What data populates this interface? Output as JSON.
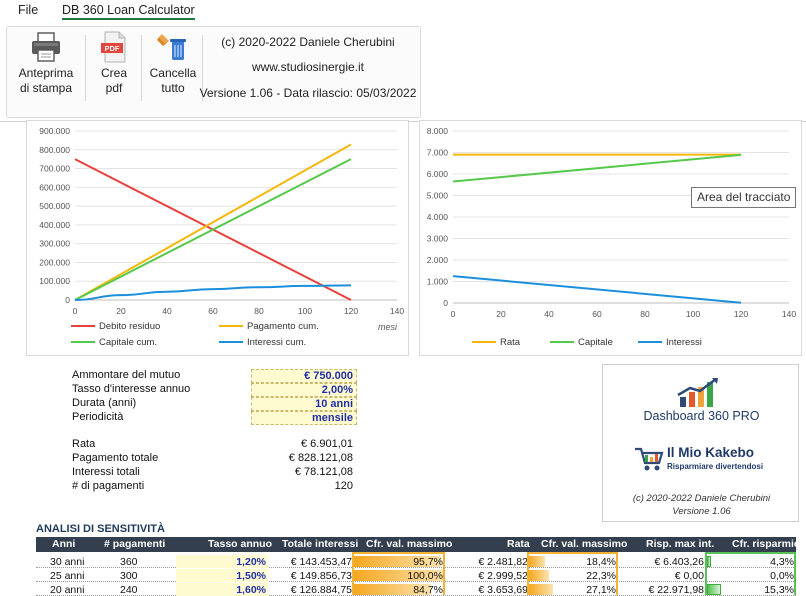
{
  "menu": {
    "file": "File",
    "app_tab": "DB 360 Loan Calculator"
  },
  "ribbon": {
    "print_label_1": "Anteprima",
    "print_label_2": "di stampa",
    "pdf_label_1": "Crea",
    "pdf_label_2": "pdf",
    "pdf_badge": "PDF",
    "clear_label_1": "Cancella",
    "clear_label_2": "tutto",
    "copyright": "(c) 2020-2022 Daniele Cherubini",
    "website": "www.studiosinergie.it",
    "version": "Versione 1.06 - Data rilascio: 05/03/2022"
  },
  "tooltip": "Area del tracciato",
  "colors": {
    "red": "#e8413c",
    "orange": "#f5b70c",
    "green": "#55c94b",
    "blue": "#1b8fdc",
    "header": "#333f4f"
  },
  "chart_data": [
    {
      "type": "line",
      "xlabel": "mesi",
      "x_ticks": [
        0,
        20,
        40,
        60,
        80,
        100,
        120,
        140
      ],
      "y_ticks": [
        "0",
        "100.000",
        "200.000",
        "300.000",
        "400.000",
        "500.000",
        "600.000",
        "700.000",
        "800.000",
        "900.000"
      ],
      "ylim": [
        0,
        900000
      ],
      "xlim": [
        0,
        140
      ],
      "series": [
        {
          "name": "Debito residuo",
          "color": "#e8413c",
          "x": [
            0,
            120
          ],
          "y": [
            750000,
            0
          ]
        },
        {
          "name": "Pagamento cum.",
          "color": "#f5b70c",
          "x": [
            0,
            120
          ],
          "y": [
            0,
            828121
          ]
        },
        {
          "name": "Capitale cum.",
          "color": "#55c94b",
          "x": [
            0,
            120
          ],
          "y": [
            0,
            750000
          ]
        },
        {
          "name": "Interessi cum.",
          "color": "#1b8fdc",
          "x": [
            0,
            20,
            40,
            60,
            80,
            100,
            120
          ],
          "y": [
            0,
            26000,
            44000,
            58000,
            68000,
            75000,
            78121
          ]
        }
      ]
    },
    {
      "type": "line",
      "x_ticks": [
        0,
        20,
        40,
        60,
        80,
        100,
        120,
        140
      ],
      "y_ticks": [
        "0",
        "1.000",
        "2.000",
        "3.000",
        "4.000",
        "5.000",
        "6.000",
        "7.000",
        "8.000"
      ],
      "ylim": [
        0,
        8000
      ],
      "xlim": [
        0,
        140
      ],
      "series": [
        {
          "name": "Rata",
          "color": "#f5b70c",
          "x": [
            0,
            120
          ],
          "y": [
            6901,
            6901
          ]
        },
        {
          "name": "Capitale",
          "color": "#55c94b",
          "x": [
            0,
            120
          ],
          "y": [
            5650,
            6890
          ]
        },
        {
          "name": "Interessi",
          "color": "#1b8fdc",
          "x": [
            0,
            120
          ],
          "y": [
            1250,
            12
          ]
        }
      ]
    }
  ],
  "inputs": [
    {
      "label": "Ammontare del mutuo",
      "value": "€ 750.000"
    },
    {
      "label": "Tasso d'interesse annuo",
      "value": "2,00%"
    },
    {
      "label": "Durata (anni)",
      "value": "10 anni"
    },
    {
      "label": "Periodicità",
      "value": "mensile"
    }
  ],
  "outputs": [
    {
      "label": "Rata",
      "value": "€ 6.901,01"
    },
    {
      "label": "Pagamento totale",
      "value": "€ 828.121,08"
    },
    {
      "label": "Interessi totali",
      "value": "€ 78.121,08"
    },
    {
      "label": "# di pagamenti",
      "value": "120"
    }
  ],
  "logo": {
    "dashboard": "Dashboard 360 PRO",
    "kakebo": "Il Mio Kakebo",
    "kakebo_tag": "Risparmiare divertendosi",
    "copyright": "(c) 2020-2022 Daniele Cherubini",
    "version": "Versione 1.06"
  },
  "sensitivity": {
    "title": "ANALISI DI SENSITIVITÀ",
    "headers": [
      "Anni",
      "# pagamenti",
      "Tasso annuo",
      "Totale interessi",
      "Cfr. val. massimo",
      "Rata",
      "Cfr. val. massimo",
      "Risp. max int.",
      "Cfr. risparmio"
    ],
    "rows": [
      {
        "anni": "30 anni",
        "pag": "360",
        "tasso": "1,20%",
        "interessi": "€ 143.453,47",
        "cfr1": "95,7%",
        "cfr1_pct": 95.7,
        "rata": "€ 2.481,82",
        "cfr2": "18,4%",
        "cfr2_pct": 18.4,
        "risp": "€ 6.403,26",
        "cfr3": "4,3%",
        "cfr3_pct": 4.3
      },
      {
        "anni": "25 anni",
        "pag": "300",
        "tasso": "1,50%",
        "interessi": "€ 149.856,73",
        "cfr1": "100,0%",
        "cfr1_pct": 100.0,
        "rata": "€ 2.999,52",
        "cfr2": "22,3%",
        "cfr2_pct": 22.3,
        "risp": "€ 0,00",
        "cfr3": "0,0%",
        "cfr3_pct": 0.0
      },
      {
        "anni": "20 anni",
        "pag": "240",
        "tasso": "1,60%",
        "interessi": "€ 126.884,75",
        "cfr1": "84,7%",
        "cfr1_pct": 84.7,
        "rata": "€ 3.653,69",
        "cfr2": "27,1%",
        "cfr2_pct": 27.1,
        "risp": "€ 22.971,98",
        "cfr3": "15,3%",
        "cfr3_pct": 15.3
      }
    ]
  }
}
